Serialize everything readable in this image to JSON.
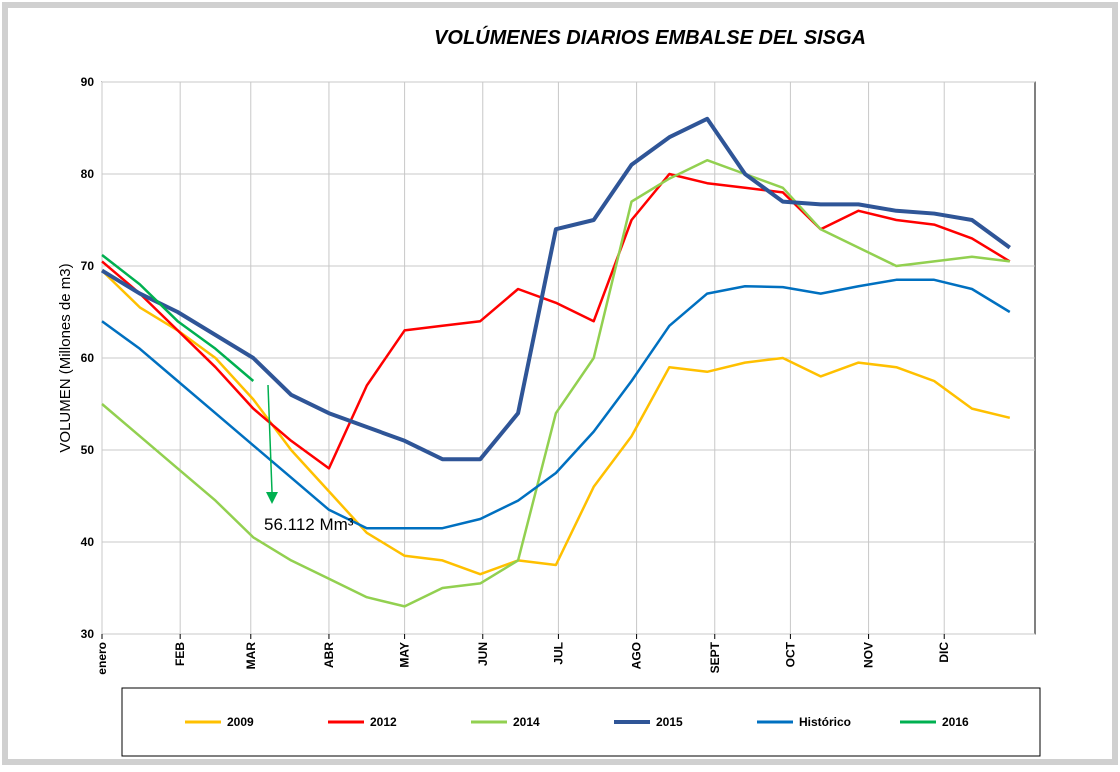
{
  "chart_data": {
    "type": "line",
    "title": "VOLÚMENES DIARIOS EMBALSE DEL SISGA",
    "y_label": "VOLUMEN  (Millones de m3)",
    "x": [
      1,
      16,
      31,
      46,
      61,
      76,
      91,
      106,
      121,
      136,
      151,
      166,
      181,
      196,
      211,
      226,
      241,
      256,
      271,
      286,
      301,
      316,
      331,
      346,
      361
    ],
    "xlim": [
      1,
      371
    ],
    "xticks": [
      {
        "value": 1,
        "label": "enero"
      },
      {
        "value": 32,
        "label": "FEB"
      },
      {
        "value": 60,
        "label": "MAR"
      },
      {
        "value": 91,
        "label": "ABR"
      },
      {
        "value": 121,
        "label": "MAY"
      },
      {
        "value": 152,
        "label": "JUN"
      },
      {
        "value": 182,
        "label": "JUL"
      },
      {
        "value": 213,
        "label": "AGO"
      },
      {
        "value": 244,
        "label": "SEPT"
      },
      {
        "value": 274,
        "label": "OCT"
      },
      {
        "value": 305,
        "label": "NOV"
      },
      {
        "value": 335,
        "label": "DIC"
      }
    ],
    "ylim": [
      30,
      90
    ],
    "yticks": [
      30,
      40,
      50,
      60,
      70,
      80,
      90
    ],
    "grid": true,
    "series": [
      {
        "name": "2009",
        "color": "#ffc000",
        "values": [
          69.5,
          65.5,
          63,
          60,
          55.5,
          50,
          45.5,
          41,
          38.5,
          38,
          36.5,
          38,
          37.5,
          46,
          51.5,
          59,
          58.5,
          59.5,
          60,
          58,
          59.5,
          59,
          57.5,
          54.5,
          53.5
        ]
      },
      {
        "name": "2012",
        "color": "#ff0000",
        "values": [
          70.5,
          67,
          63,
          59,
          54.5,
          51,
          48,
          57,
          63,
          63.5,
          64,
          67.5,
          66,
          64,
          75,
          80,
          79,
          78.5,
          78,
          74,
          76,
          75,
          74.5,
          73,
          70.5
        ]
      },
      {
        "name": "2014",
        "color": "#92d050",
        "values": [
          55,
          51.5,
          48,
          44.5,
          40.5,
          38,
          36,
          34,
          33,
          35,
          35.5,
          38,
          54,
          60,
          77,
          79.5,
          81.5,
          80,
          78.5,
          74,
          72,
          70,
          70.5,
          71,
          70.5
        ]
      },
      {
        "name": "2015",
        "color": "#2f5597",
        "values": [
          69.5,
          67,
          65,
          62.5,
          60,
          56,
          54,
          52.5,
          51,
          49,
          49,
          54,
          74,
          75,
          81,
          84,
          86,
          80,
          77,
          76.7,
          76.7,
          76,
          75.7,
          75,
          72
        ]
      },
      {
        "name": "Histórico",
        "color": "#0070c0",
        "values": [
          64,
          61,
          57.5,
          54,
          50.5,
          47,
          43.5,
          41.5,
          41.5,
          41.5,
          42.5,
          44.5,
          47.5,
          52,
          57.5,
          63.5,
          67,
          67.8,
          67.7,
          67,
          67.8,
          68.5,
          68.5,
          67.5,
          65
        ]
      },
      {
        "name": "2016",
        "color": "#00b050",
        "values": [
          71.2,
          68,
          64,
          61,
          57.5,
          null,
          null,
          null,
          null,
          null,
          null,
          null,
          null,
          null,
          null,
          null,
          null,
          null,
          null,
          null,
          null,
          null,
          null,
          null,
          null
        ]
      }
    ],
    "annotation": "56.112 Mm³"
  }
}
